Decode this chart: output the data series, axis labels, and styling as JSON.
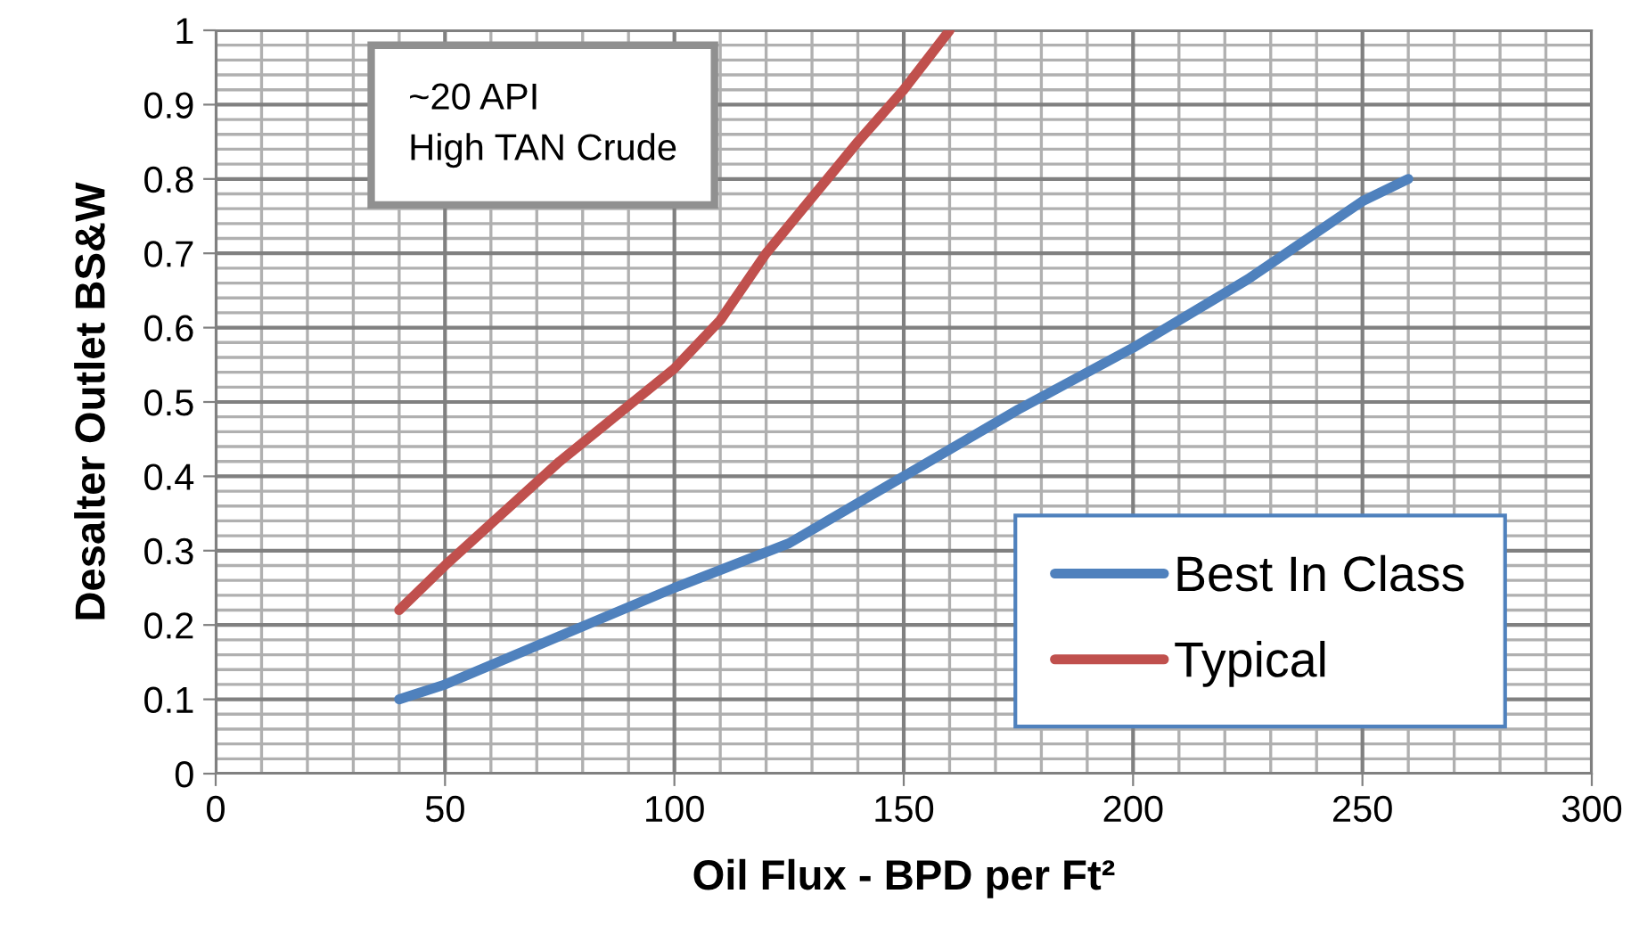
{
  "chart_data": {
    "type": "line",
    "xlabel": "Oil Flux - BPD per Ft²",
    "ylabel": "Desalter Outlet BS&W",
    "annotations": [
      "~20 API\nHigh TAN Crude"
    ],
    "series": [
      {
        "name": "Best In Class",
        "color": "#4f81bd",
        "x": [
          40,
          50,
          75,
          100,
          125,
          150,
          175,
          200,
          225,
          250,
          260
        ],
        "values": [
          0.1,
          0.12,
          0.185,
          0.25,
          0.31,
          0.4,
          0.49,
          0.573,
          0.665,
          0.77,
          0.8
        ]
      },
      {
        "name": "Typical",
        "color": "#c0504d",
        "x": [
          40,
          50,
          75,
          100,
          110,
          120,
          140,
          150,
          160
        ],
        "values": [
          0.22,
          0.28,
          0.42,
          0.545,
          0.61,
          0.7,
          0.85,
          0.92,
          1.0
        ]
      }
    ],
    "xlim": [
      0,
      300
    ],
    "ylim": [
      0,
      1
    ],
    "xticks": [
      0,
      50,
      100,
      150,
      200,
      250,
      300
    ],
    "yticks": [
      0,
      0.1,
      0.2,
      0.3,
      0.4,
      0.5,
      0.6,
      0.7,
      0.8,
      0.9,
      1
    ],
    "grid": true,
    "legend": "bottom right",
    "line_style": "solid",
    "marker": "none"
  }
}
